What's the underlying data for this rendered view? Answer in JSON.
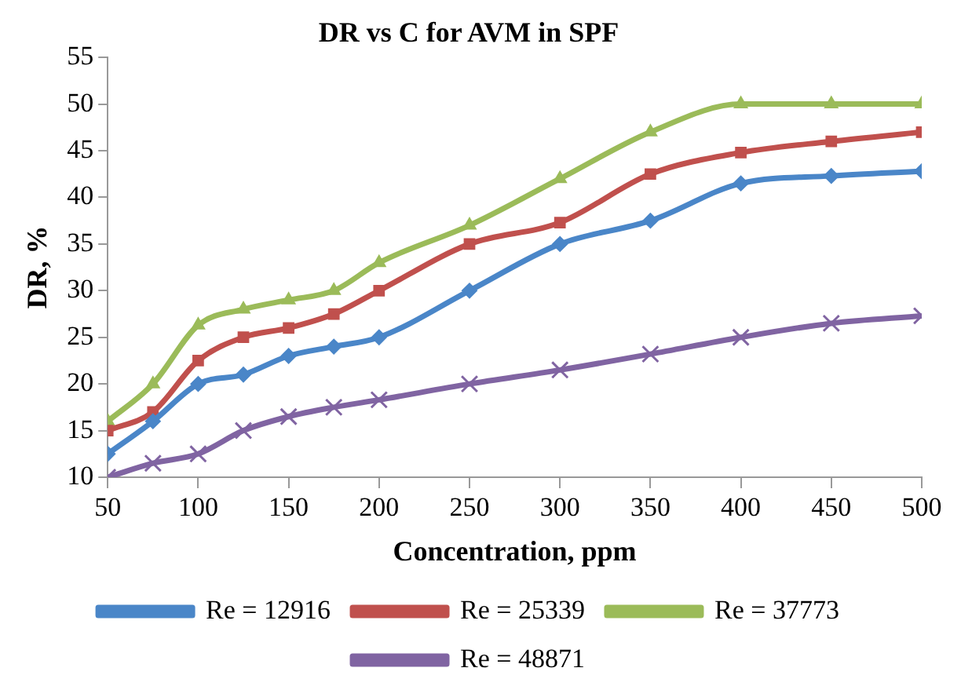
{
  "chart_data": {
    "type": "line",
    "title": "DR vs C for AVM in SPF",
    "xlabel": "Concentration, ppm",
    "ylabel": "DR, %",
    "x": [
      50,
      75,
      100,
      125,
      150,
      175,
      200,
      250,
      300,
      350,
      400,
      450,
      500
    ],
    "xlim": [
      50,
      500
    ],
    "xticks": [
      50,
      100,
      150,
      200,
      250,
      300,
      350,
      400,
      450,
      500
    ],
    "ylim": [
      10,
      55
    ],
    "yticks": [
      10,
      15,
      20,
      25,
      30,
      35,
      40,
      45,
      50,
      55
    ],
    "grid": false,
    "legend": "bottom",
    "series": [
      {
        "name": "Re = 12916",
        "color": "#4a86c8",
        "marker": "diamond",
        "values": [
          12.5,
          16,
          20,
          21,
          23,
          24,
          25,
          30,
          35,
          37.5,
          41.5,
          42.3,
          42.8
        ]
      },
      {
        "name": "Re = 25339",
        "color": "#c0504d",
        "marker": "square",
        "values": [
          15,
          17,
          22.5,
          25,
          26,
          27.5,
          30,
          35,
          37.3,
          42.5,
          44.8,
          46,
          47
        ]
      },
      {
        "name": "Re = 37773",
        "color": "#9bbb59",
        "marker": "triangle",
        "values": [
          16,
          20,
          26.3,
          28,
          29,
          30,
          33,
          37,
          42,
          47,
          50,
          50,
          50
        ]
      },
      {
        "name": "Re = 48871",
        "color": "#8064a2",
        "marker": "cross",
        "values": [
          10,
          11.5,
          12.5,
          15,
          16.5,
          17.5,
          18.3,
          20,
          21.5,
          23.2,
          25,
          26.5,
          27.3
        ]
      }
    ]
  }
}
